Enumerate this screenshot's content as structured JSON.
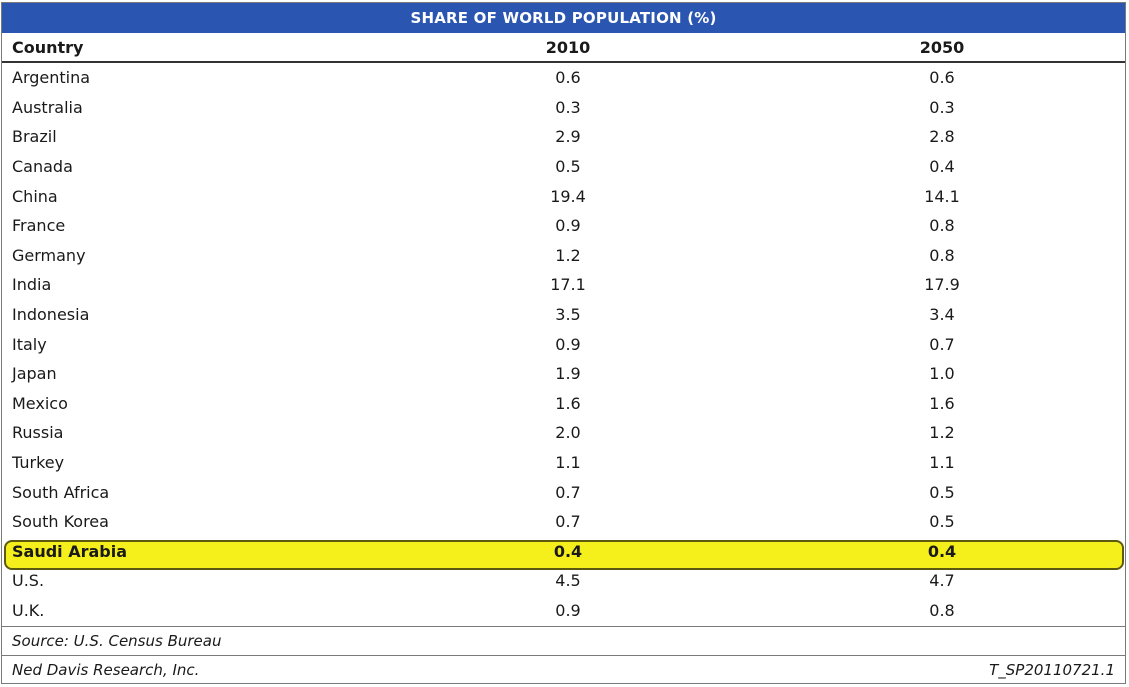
{
  "chart_data": {
    "type": "table",
    "title": "SHARE OF WORLD POPULATION (%)",
    "columns": [
      "Country",
      "2010",
      "2050"
    ],
    "rows": [
      {
        "country": "Argentina",
        "y2010": "0.6",
        "y2050": "0.6"
      },
      {
        "country": "Australia",
        "y2010": "0.3",
        "y2050": "0.3"
      },
      {
        "country": "Brazil",
        "y2010": "2.9",
        "y2050": "2.8"
      },
      {
        "country": "Canada",
        "y2010": "0.5",
        "y2050": "0.4"
      },
      {
        "country": "China",
        "y2010": "19.4",
        "y2050": "14.1"
      },
      {
        "country": "France",
        "y2010": "0.9",
        "y2050": "0.8"
      },
      {
        "country": "Germany",
        "y2010": "1.2",
        "y2050": "0.8"
      },
      {
        "country": "India",
        "y2010": "17.1",
        "y2050": "17.9"
      },
      {
        "country": "Indonesia",
        "y2010": "3.5",
        "y2050": "3.4"
      },
      {
        "country": "Italy",
        "y2010": "0.9",
        "y2050": "0.7"
      },
      {
        "country": "Japan",
        "y2010": "1.9",
        "y2050": "1.0"
      },
      {
        "country": "Mexico",
        "y2010": "1.6",
        "y2050": "1.6"
      },
      {
        "country": "Russia",
        "y2010": "2.0",
        "y2050": "1.2"
      },
      {
        "country": "Turkey",
        "y2010": "1.1",
        "y2050": "1.1"
      },
      {
        "country": "South Africa",
        "y2010": "0.7",
        "y2050": "0.5"
      },
      {
        "country": "South Korea",
        "y2010": "0.7",
        "y2050": "0.5"
      },
      {
        "country": "Saudi Arabia",
        "y2010": "0.4",
        "y2050": "0.4",
        "highlight": true
      },
      {
        "country": "U.S.",
        "y2010": "4.5",
        "y2050": "4.7"
      },
      {
        "country": "U.K.",
        "y2010": "0.9",
        "y2050": "0.8"
      }
    ],
    "highlight_color": "#f5ef1c",
    "header_color": "#2a55b0",
    "source": "Source: U.S. Census Bureau",
    "publisher": "Ned Davis Research, Inc.",
    "code": "T_SP20110721.1"
  }
}
